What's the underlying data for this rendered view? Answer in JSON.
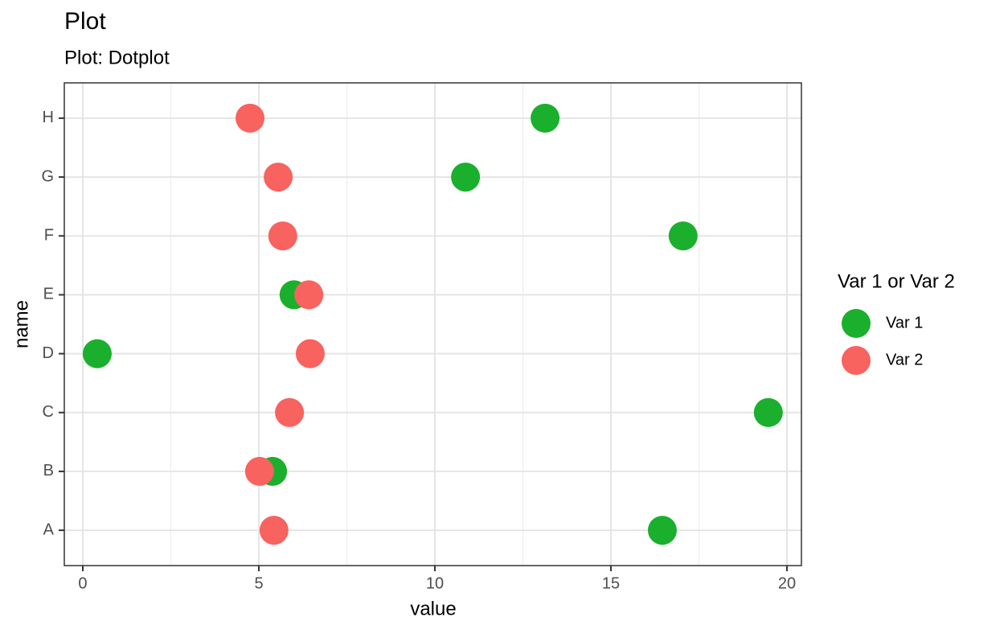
{
  "chart_data": {
    "type": "dotplot",
    "title": "Plot",
    "subtitle": "Plot: Dotplot",
    "x_label": "value",
    "y_label": "name",
    "categories": [
      "A",
      "B",
      "C",
      "D",
      "E",
      "F",
      "G",
      "H"
    ],
    "series": [
      {
        "name": "Var 1",
        "color": "#1aaf2c",
        "values": [
          16.46,
          5.39,
          19.47,
          0.41,
          6.0,
          17.05,
          10.87,
          13.13
        ]
      },
      {
        "name": "Var 2",
        "color": "#f8625f",
        "values": [
          5.43,
          5.02,
          5.87,
          6.46,
          6.42,
          5.68,
          5.55,
          4.75
        ]
      }
    ],
    "legend_title": "Var 1 or Var 2",
    "xlim": [
      -0.525,
      20.41
    ],
    "xticks": [
      0,
      5,
      10,
      15,
      20
    ],
    "xminor": [
      2.5,
      7.5,
      12.5,
      17.5
    ],
    "grid": true,
    "legend_position": "right"
  }
}
